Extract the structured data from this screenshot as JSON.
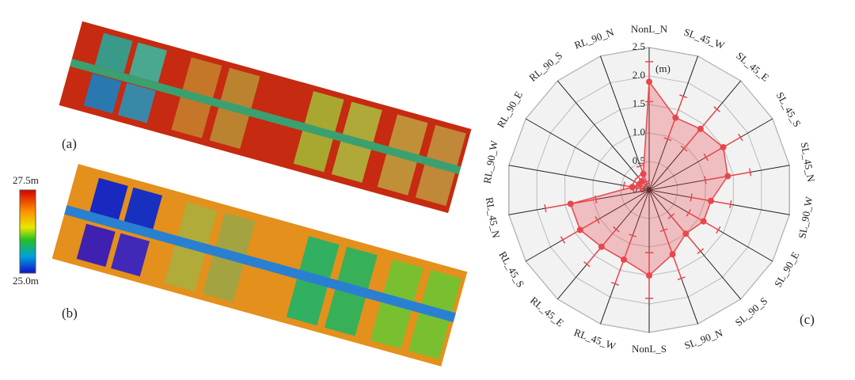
{
  "panels": {
    "a": "(a)",
    "b": "(b)",
    "c": "(c)"
  },
  "colorbar": {
    "max_label": "27.5m",
    "min_label": "25.0m"
  },
  "chart_data": {
    "type": "radar",
    "unit": "(m)",
    "categories": [
      "NonL_N",
      "SL_45_W",
      "SL_45_E",
      "SL_45_S",
      "SL_45_N",
      "SL_90_W",
      "SL_90_E",
      "SL_90_S",
      "SL_90_N",
      "NonL_S",
      "RL_45_W",
      "RL_45_E",
      "RL_45_S",
      "RL_45_N",
      "RL_90_W",
      "RL_90_E",
      "RL_90_S",
      "RL_90_N"
    ],
    "values": [
      1.9,
      1.35,
      1.4,
      1.5,
      1.4,
      1.1,
      1.1,
      1.0,
      1.2,
      1.5,
      1.3,
      1.3,
      1.4,
      1.4,
      0.3,
      0.2,
      0.2,
      0.3
    ],
    "errors": [
      0.35,
      0.4,
      0.45,
      0.35,
      0.4,
      0.35,
      0.3,
      0.4,
      0.45,
      0.4,
      0.45,
      0.4,
      0.35,
      0.45,
      0.15,
      0.1,
      0.1,
      0.15
    ],
    "color": "#e8474c",
    "rlim": [
      0,
      2.5
    ],
    "rticks": [
      {
        "value": 0,
        "label": "0.0"
      },
      0.5,
      {
        "value": 1,
        "label": "1.0"
      },
      1.5,
      {
        "value": 2,
        "label": "2.0"
      },
      2.5
    ]
  }
}
